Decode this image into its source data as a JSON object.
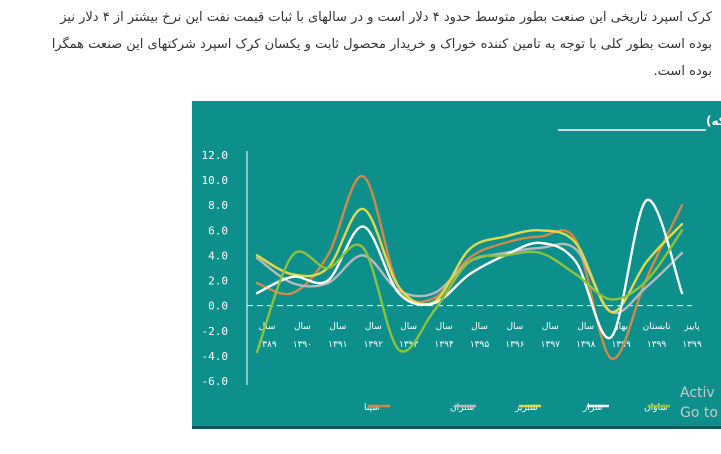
{
  "article": {
    "lines": [
      "کرک اسپرد تاریخی این صنعت بطور متوسط حدود ۴ دلار است و در سالهای با ثبات قیمت نفت این نرخ بیشتر از ۴ دلار نیز",
      "بوده است بطور کلی با توجه به تامین کننده خوراک و خریدار محصول ثابت و یکسان کرک اسپرد شرکتهای این صنعت همگرا",
      "بوده است."
    ]
  },
  "watermark": {
    "line1": "Activ",
    "line2": "Go to"
  },
  "colors": {
    "card_bg": "#0d8f8c",
    "series": [
      "#d08a48",
      "#b7b9bd",
      "#e2d84a",
      "#ffffff",
      "#8fc13d"
    ]
  },
  "chart_data": {
    "type": "line",
    "title": "کرک اسپرد(دلار بر بشکه)",
    "xlabel": "",
    "ylabel": "",
    "ylim": [
      -6,
      12
    ],
    "yticks": [
      "12.0",
      "10.0",
      "8.0",
      "6.0",
      "4.0",
      "2.0",
      "0.0",
      "-2.0",
      "-4.0",
      "-6.0"
    ],
    "categories": [
      "سال ۱۳۸۹",
      "سال ۱۳۹۰",
      "سال ۱۳۹۱",
      "سال ۱۳۹۲",
      "سال ۱۳۹۳",
      "سال ۱۳۹۴",
      "سال ۱۳۹۵",
      "سال ۱۳۹۶",
      "سال ۱۳۹۷",
      "سال ۱۳۹۸",
      "بهار ۱۳۹۹",
      "تابستان ۱۳۹۹",
      "پاییز ۱۳۹۹"
    ],
    "categories_line1": [
      "سال",
      "سال",
      "سال",
      "سال",
      "سال",
      "سال",
      "سال",
      "سال",
      "سال",
      "سال",
      "بهار",
      "تابستان",
      "پاییز"
    ],
    "categories_line2": [
      "۱۳۸۹",
      "۱۳۹۰",
      "۱۳۹۱",
      "۱۳۹۲",
      "۱۳۹۳",
      "۱۳۹۴",
      "۱۳۹۵",
      "۱۳۹۶",
      "۱۳۹۷",
      "۱۳۹۸",
      "۱۳۹۹",
      "۱۳۹۹",
      "۱۳۹۹"
    ],
    "series": [
      {
        "name": "شپنا",
        "values": [
          1.8,
          1.0,
          4.0,
          10.3,
          1.5,
          0.6,
          3.8,
          5.0,
          5.5,
          5.2,
          -4.2,
          2.2,
          8.0
        ]
      },
      {
        "name": "شتران",
        "values": [
          3.8,
          1.8,
          1.8,
          4.0,
          1.2,
          1.0,
          3.5,
          4.2,
          4.6,
          4.5,
          -0.5,
          1.5,
          4.2
        ]
      },
      {
        "name": "شبریز",
        "values": [
          4.0,
          2.5,
          3.0,
          7.7,
          1.5,
          0.3,
          4.5,
          5.5,
          6.0,
          5.0,
          -0.5,
          3.5,
          6.5
        ]
      },
      {
        "name": "شراز",
        "values": [
          1.0,
          2.3,
          2.0,
          6.3,
          1.0,
          0.2,
          2.5,
          4.0,
          5.0,
          3.5,
          -2.5,
          8.4,
          1.0
        ]
      },
      {
        "name": "شاوان",
        "values": [
          -3.7,
          4.0,
          3.0,
          4.6,
          -3.5,
          -0.4,
          3.5,
          4.0,
          4.2,
          2.5,
          0.5,
          2.0,
          6.0
        ]
      }
    ],
    "legend_position": "bottom",
    "grid": false
  }
}
